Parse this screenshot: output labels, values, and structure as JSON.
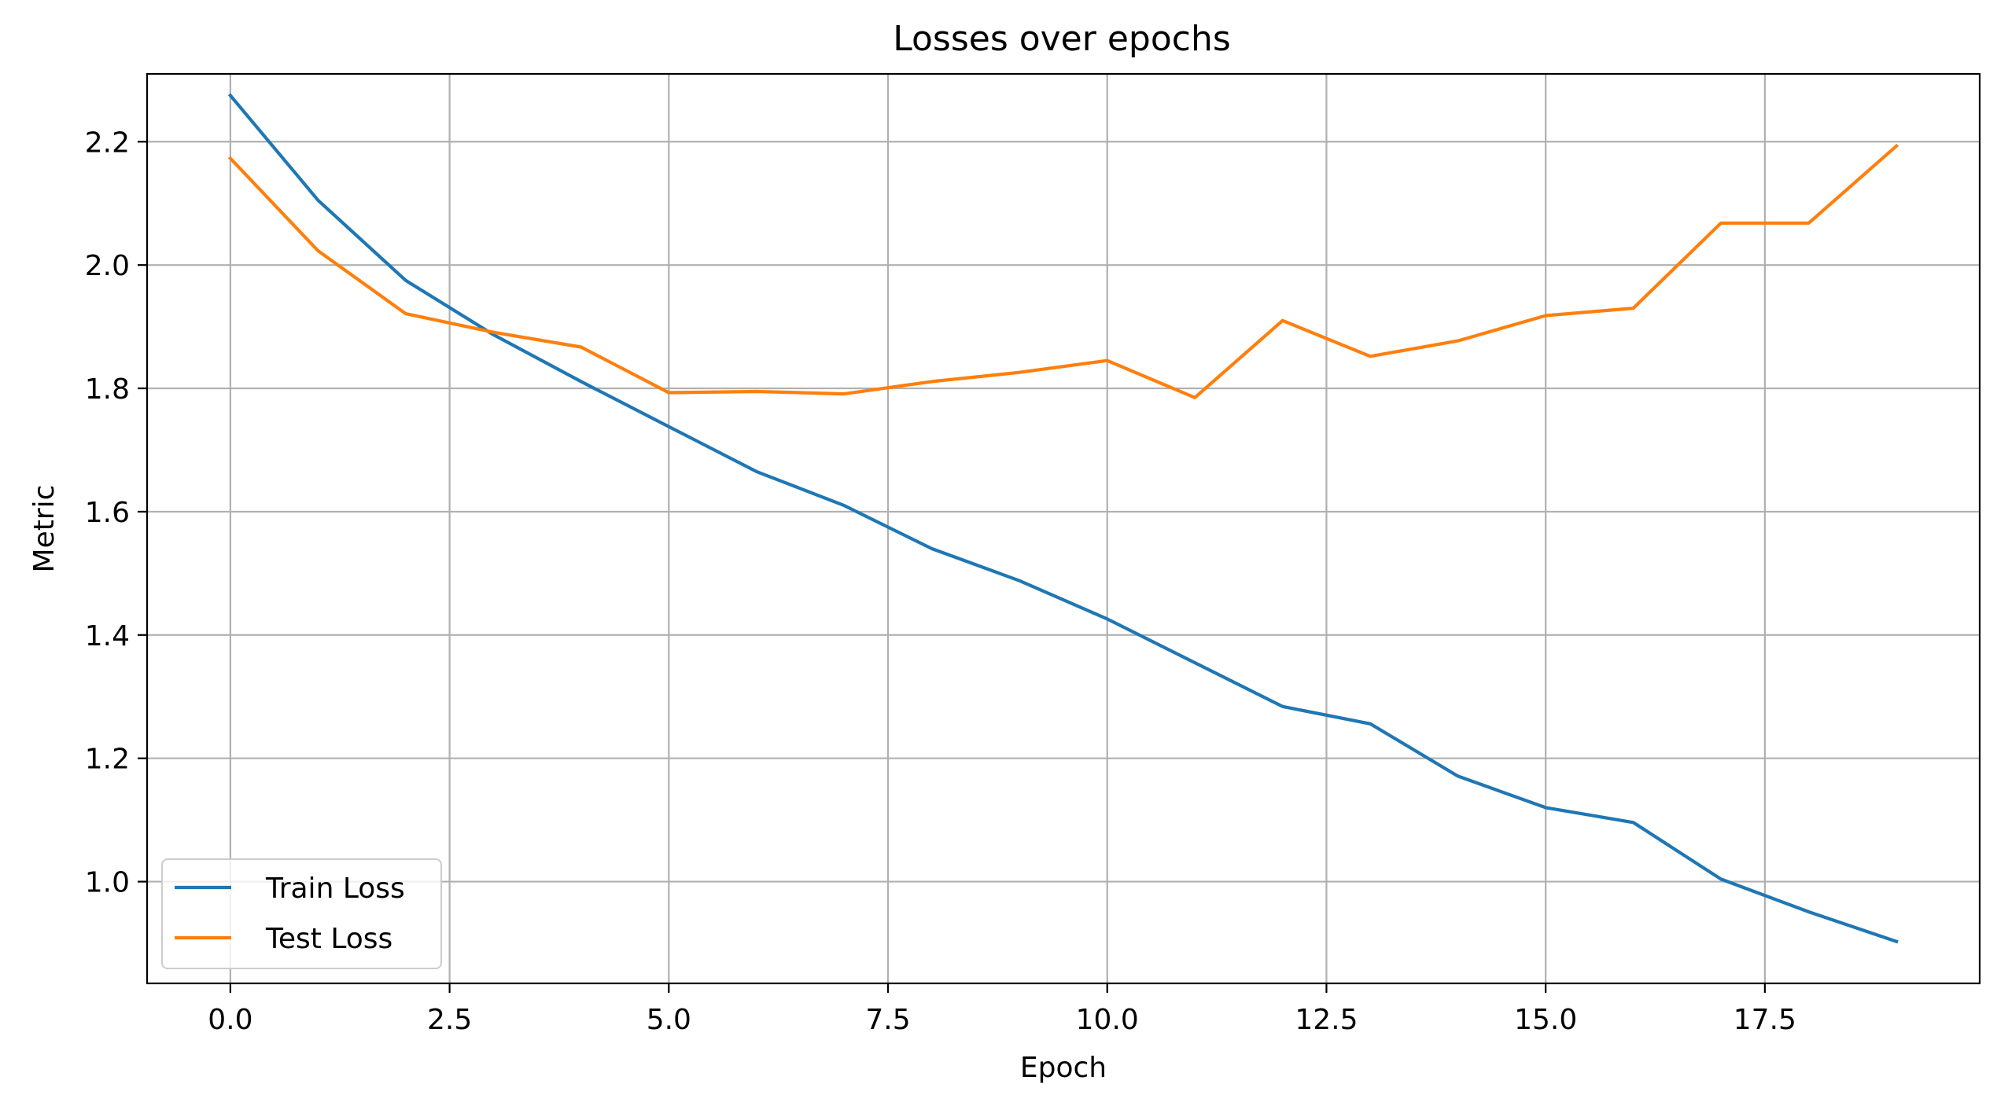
{
  "chart_data": {
    "type": "line",
    "title": "Losses over epochs",
    "xlabel": "Epoch",
    "ylabel": "Metric",
    "xlim": [
      -0.95,
      19.95
    ],
    "ylim": [
      0.835,
      2.31
    ],
    "xticks": [
      0.0,
      2.5,
      5.0,
      7.5,
      10.0,
      12.5,
      15.0,
      17.5
    ],
    "xtick_labels": [
      "0.0",
      "2.5",
      "5.0",
      "7.5",
      "10.0",
      "12.5",
      "15.0",
      "17.5"
    ],
    "yticks": [
      1.0,
      1.2,
      1.4,
      1.6,
      1.8,
      2.0,
      2.2
    ],
    "ytick_labels": [
      "1.0",
      "1.2",
      "1.4",
      "1.6",
      "1.8",
      "2.0",
      "2.2"
    ],
    "grid": true,
    "legend_position": "lower-left",
    "x": [
      0,
      1,
      2,
      3,
      4,
      5,
      6,
      7,
      8,
      9,
      10,
      11,
      12,
      13,
      14,
      15,
      16,
      17,
      18,
      19
    ],
    "series": [
      {
        "name": "Train Loss",
        "color": "#1f77b4",
        "values": [
          2.275,
          2.105,
          1.975,
          1.887,
          1.811,
          1.738,
          1.665,
          1.61,
          1.54,
          1.488,
          1.426,
          1.355,
          1.284,
          1.256,
          1.171,
          1.12,
          1.096,
          1.004,
          0.951,
          0.903
        ]
      },
      {
        "name": "Test Loss",
        "color": "#ff7f0e",
        "values": [
          2.173,
          2.023,
          1.921,
          1.891,
          1.867,
          1.793,
          1.795,
          1.791,
          1.811,
          1.826,
          1.845,
          1.785,
          1.91,
          1.852,
          1.877,
          1.918,
          1.93,
          2.068,
          2.068,
          2.193
        ]
      }
    ]
  }
}
